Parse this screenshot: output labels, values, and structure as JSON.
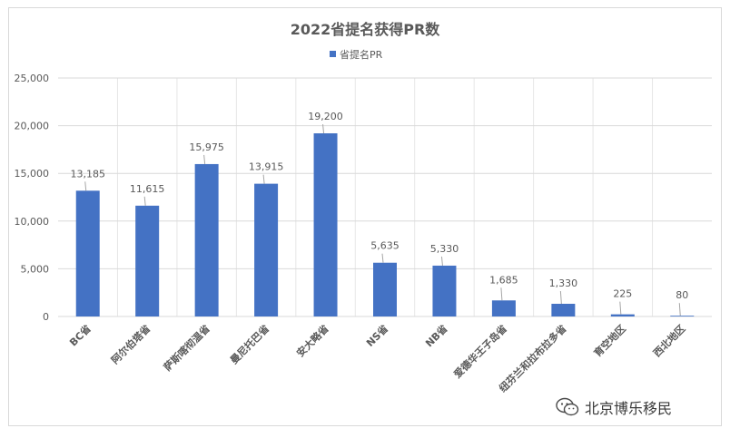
{
  "chart_data": {
    "type": "bar",
    "title": "2022省提名获得PR数",
    "legend": "top",
    "series": [
      {
        "name": "省提名PR",
        "color": "#4472c4",
        "values": [
          13185,
          11615,
          15975,
          13915,
          19200,
          5635,
          5330,
          1685,
          1330,
          225,
          80
        ]
      }
    ],
    "categories": [
      "BC省",
      "阿尔伯塔省",
      "萨斯喀彻温省",
      "曼尼托巴省",
      "安大略省",
      "NS省",
      "NB省",
      "爱德华王子岛省",
      "纽芬兰和拉布拉多省",
      "育空地区",
      "西北地区"
    ],
    "data_labels": [
      "13,185",
      "11,615",
      "15,975",
      "13,915",
      "19,200",
      "5,635",
      "5,330",
      "1,685",
      "1,330",
      "225",
      "80"
    ],
    "ylim": [
      0,
      25000
    ],
    "yticks": [
      0,
      5000,
      10000,
      15000,
      20000,
      25000
    ],
    "ytick_labels": [
      "0",
      "5,000",
      "10,000",
      "15,000",
      "20,000",
      "25,000"
    ],
    "grid": true
  },
  "watermark": {
    "text": "北京博乐移民",
    "icon": "wechat-icon"
  }
}
